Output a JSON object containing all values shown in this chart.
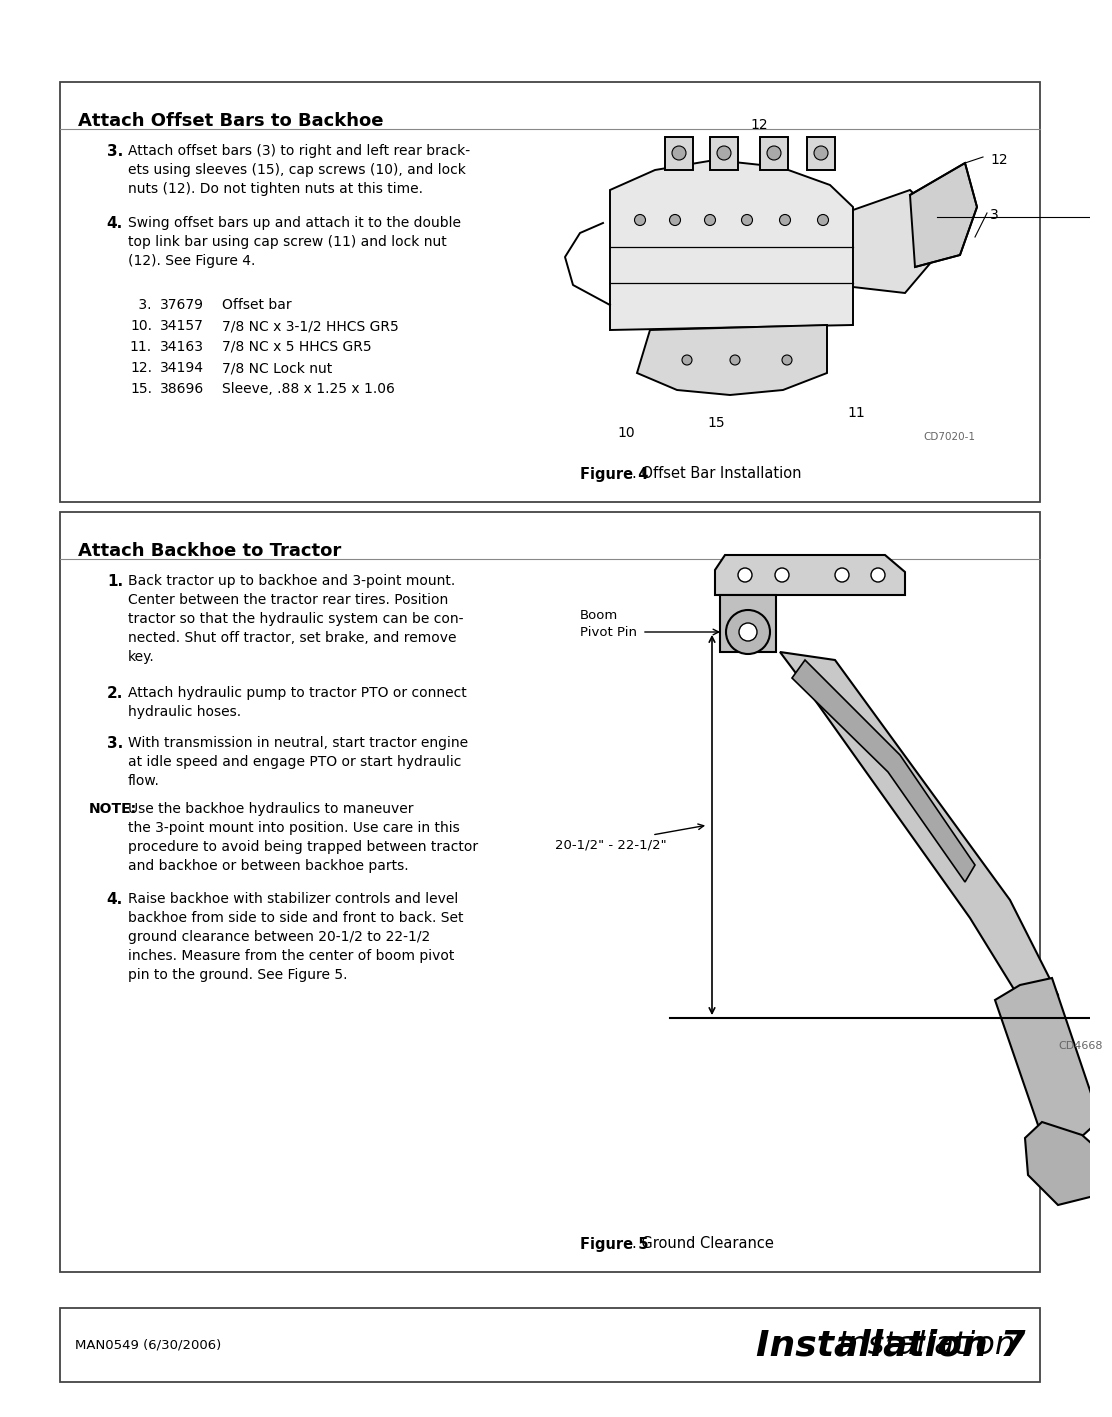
{
  "page_bg": "#ffffff",
  "box_border_color": "#444444",
  "section1_title": "Attach Offset Bars to Backhoe",
  "section1_item3_label": "3.",
  "section1_item3_text": "Attach offset bars (3) to right and left rear brack-\nets using sleeves (15), cap screws (10), and lock\nnuts (12). Do not tighten nuts at this time.",
  "section1_item4_label": "4.",
  "section1_item4_text": "Swing offset bars up and attach it to the double\ntop link bar using cap screw (11) and lock nut\n(12). See Figure 4.",
  "parts": [
    {
      "num": " 3.",
      "code": "37679",
      "desc": "Offset bar"
    },
    {
      "num": "10.",
      "code": "34157",
      "desc": "7/8 NC x 3-1/2 HHCS GR5"
    },
    {
      "num": "11.",
      "code": "34163",
      "desc": "7/8 NC x 5 HHCS GR5"
    },
    {
      "num": "12.",
      "code": "34194",
      "desc": "7/8 NC Lock nut"
    },
    {
      "num": "15.",
      "code": "38696",
      "desc": "Sleeve, .88 x 1.25 x 1.06"
    }
  ],
  "fig4_caption_bold": "Figure 4",
  "fig4_caption_rest": ". Offset Bar Installation",
  "fig4_code": "CD7020-1",
  "section2_title": "Attach Backhoe to Tractor",
  "section2_item1_label": "1.",
  "section2_item1_text": "Back tractor up to backhoe and 3-point mount.\nCenter between the tractor rear tires. Position\ntractor so that the hydraulic system can be con-\nnected. Shut off tractor, set brake, and remove\nkey.",
  "section2_item2_label": "2.",
  "section2_item2_text": "Attach hydraulic pump to tractor PTO or connect\nhydraulic hoses.",
  "section2_item3_label": "3.",
  "section2_item3_text": "With transmission in neutral, start tractor engine\nat idle speed and engage PTO or start hydraulic\nflow.",
  "section2_note_label": "NOTE:",
  "section2_note_text": "Use the backhoe hydraulics to maneuver\nthe 3-point mount into position. Use care in this\nprocedure to avoid being trapped between tractor\nand backhoe or between backhoe parts.",
  "section2_item4_label": "4.",
  "section2_item4_text": "Raise backhoe with stabilizer controls and level\nbackhoe from side to side and front to back. Set\nground clearance between 20-1/2 to 22-1/2\ninches. Measure from the center of boom pivot\npin to the ground. See Figure 5.",
  "fig5_caption_bold": "Figure 5",
  "fig5_caption_rest": ". Ground Clearance",
  "fig5_code": "CD4668",
  "fig5_label_boom": "Boom\nPivot Pin",
  "fig5_label_meas": "20-1/2\" - 22-1/2\"",
  "footer_left": "MAN0549 (6/30/2006)",
  "footer_right": "Installation 7"
}
